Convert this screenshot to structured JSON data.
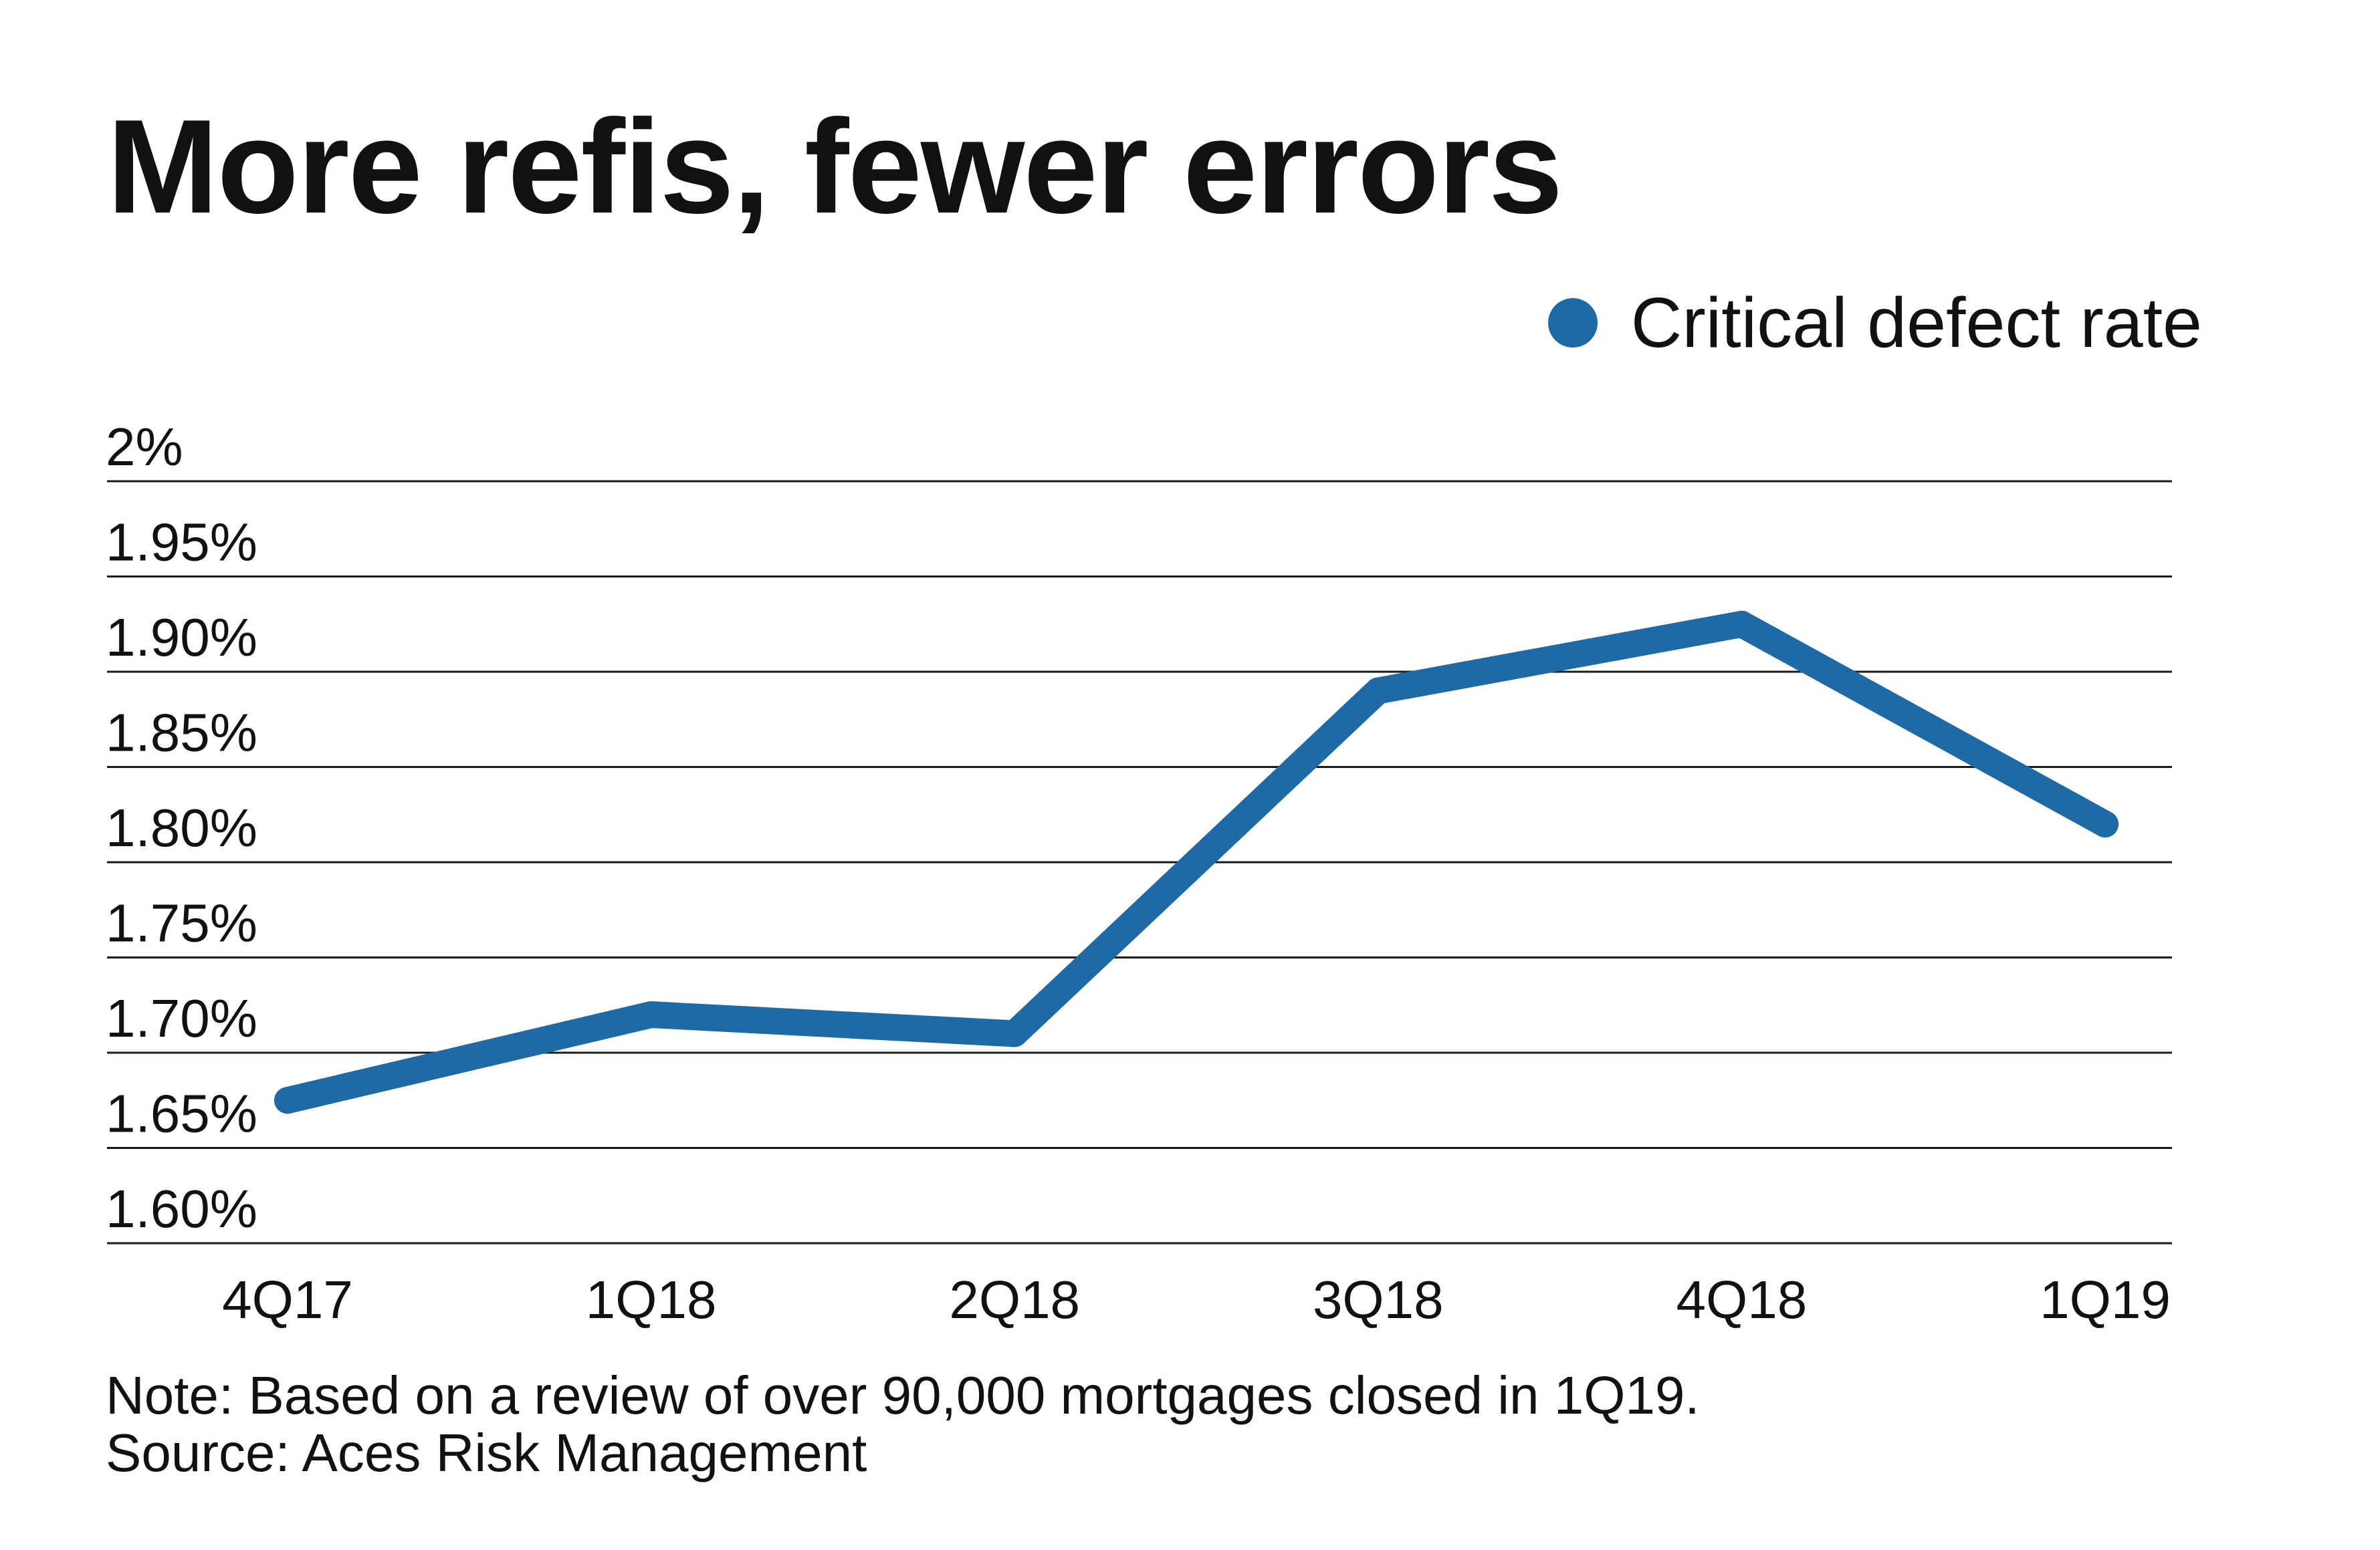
{
  "title": "More refis, fewer errors",
  "legend": {
    "label": "Critical defect rate"
  },
  "note": "Note: Based on a review of over 90,000 mortgages closed in 1Q19.",
  "source": "Source: Aces Risk Management",
  "colors": {
    "series": "#1f6aa5",
    "grid": "#1a1a1a",
    "text": "#111111"
  },
  "chart_data": {
    "type": "line",
    "title": "More refis, fewer errors",
    "xlabel": "",
    "ylabel": "",
    "categories": [
      "4Q17",
      "1Q18",
      "2Q18",
      "3Q18",
      "4Q18",
      "1Q19"
    ],
    "series": [
      {
        "name": "Critical defect rate",
        "values": [
          1.675,
          1.72,
          1.71,
          1.89,
          1.925,
          1.82
        ]
      }
    ],
    "ylim": [
      1.6,
      2.0
    ],
    "y_ticks": [
      {
        "value": 2.0,
        "label": "2%"
      },
      {
        "value": 1.95,
        "label": "1.95%"
      },
      {
        "value": 1.9,
        "label": "1.90%"
      },
      {
        "value": 1.85,
        "label": "1.85%"
      },
      {
        "value": 1.8,
        "label": "1.80%"
      },
      {
        "value": 1.75,
        "label": "1.75%"
      },
      {
        "value": 1.7,
        "label": "1.70%"
      },
      {
        "value": 1.65,
        "label": "1.65%"
      },
      {
        "value": 1.6,
        "label": "1.60%"
      }
    ],
    "grid": true,
    "legend_position": "top-right"
  }
}
